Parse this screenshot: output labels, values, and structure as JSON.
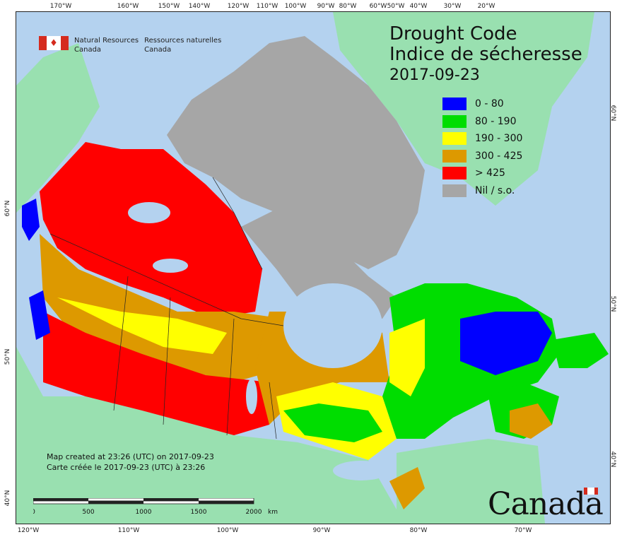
{
  "title": {
    "line1": "Drought Code",
    "line2": "Indice de sécheresse",
    "date": "2017-09-23"
  },
  "agency": {
    "en_line1": "Natural Resources",
    "en_line2": "Canada",
    "fr_line1": "Ressources naturelles",
    "fr_line2": "Canada"
  },
  "legend": [
    {
      "label": "0 - 80",
      "color": "#0000ff"
    },
    {
      "label": "80 - 190",
      "color": "#00dd00"
    },
    {
      "label": "190 - 300",
      "color": "#ffff00"
    },
    {
      "label": "300 - 425",
      "color": "#dd9900"
    },
    {
      "label": "> 425",
      "color": "#ff0000"
    },
    {
      "label": "Nil / s.o.",
      "color": "#a6a6a6"
    }
  ],
  "credit": {
    "en": "Map created at 23:26 (UTC) on 2017-09-23",
    "fr": "Carte créée le 2017-09-23 (UTC) à 23:26"
  },
  "scale": {
    "labels": [
      "0",
      "500",
      "1000",
      "1500",
      "2000"
    ],
    "unit": "km"
  },
  "wordmark": "Canada",
  "graticule": {
    "top": [
      "170°W",
      "160°W",
      "150°W",
      "140°W",
      "120°W",
      "110°W",
      "100°W",
      "90°W",
      "80°W",
      "60°W",
      "50°W",
      "40°W",
      "30°W",
      "20°W"
    ],
    "bottom": [
      "120°W",
      "110°W",
      "100°W",
      "90°W",
      "80°W",
      "70°W"
    ],
    "left": [
      "60°N",
      "50°N",
      "40°N"
    ],
    "right": [
      "60°N",
      "50°N",
      "40°N"
    ]
  },
  "colors": {
    "ocean": "#b4d2ef",
    "land_foreign": "#99e0b0",
    "no_data": "#a6a6a6"
  }
}
